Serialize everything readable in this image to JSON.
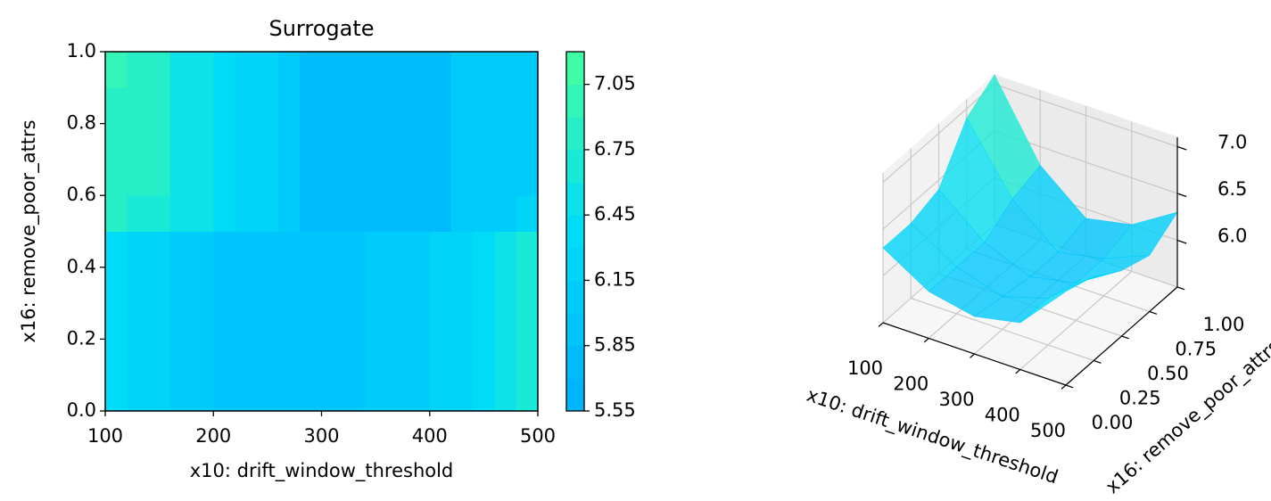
{
  "chart_data": [
    {
      "type": "contour",
      "title": "Surrogate",
      "xlabel": "x10: drift_window_threshold",
      "ylabel": "x16: remove_poor_attrs",
      "x": [
        110,
        130,
        150,
        170,
        190,
        210,
        230,
        250,
        270,
        290,
        310,
        330,
        350,
        370,
        390,
        410,
        430,
        450,
        470,
        490
      ],
      "y": [
        0.05,
        0.15,
        0.25,
        0.35,
        0.45,
        0.55,
        0.65,
        0.75,
        0.85,
        0.95
      ],
      "z": [
        [
          6.3,
          6.15,
          6.15,
          6.0,
          6.0,
          5.95,
          5.85,
          5.85,
          5.85,
          5.85,
          5.85,
          5.95,
          6.0,
          6.0,
          6.0,
          6.15,
          6.15,
          6.4,
          6.45,
          6.6
        ],
        [
          6.3,
          6.15,
          6.15,
          6.0,
          6.0,
          5.95,
          5.85,
          5.85,
          5.85,
          5.85,
          5.85,
          5.95,
          6.0,
          6.0,
          6.0,
          6.15,
          6.15,
          6.4,
          6.45,
          6.6
        ],
        [
          6.3,
          6.15,
          6.15,
          6.0,
          6.0,
          5.95,
          5.85,
          5.85,
          5.85,
          5.85,
          5.85,
          5.95,
          6.0,
          6.0,
          6.0,
          6.15,
          6.15,
          6.4,
          6.45,
          6.6
        ],
        [
          6.3,
          6.15,
          6.15,
          6.0,
          6.0,
          5.95,
          5.85,
          5.85,
          5.85,
          5.85,
          5.85,
          5.95,
          6.0,
          6.0,
          6.0,
          6.15,
          6.15,
          6.4,
          6.45,
          6.6
        ],
        [
          6.3,
          6.15,
          6.15,
          6.0,
          6.0,
          5.95,
          5.85,
          5.85,
          5.85,
          5.85,
          5.85,
          5.95,
          6.0,
          6.0,
          6.0,
          6.15,
          6.15,
          6.4,
          6.45,
          6.6
        ],
        [
          6.75,
          6.7,
          6.65,
          6.5,
          6.45,
          6.3,
          6.25,
          6.15,
          6.1,
          5.8,
          5.8,
          5.8,
          5.8,
          5.8,
          5.8,
          5.8,
          6.1,
          6.1,
          6.1,
          6.15
        ],
        [
          6.85,
          6.8,
          6.75,
          6.55,
          6.5,
          6.3,
          6.25,
          6.15,
          6.1,
          5.75,
          5.75,
          5.75,
          5.75,
          5.75,
          5.75,
          5.75,
          6.1,
          6.1,
          6.1,
          6.1
        ],
        [
          6.85,
          6.8,
          6.75,
          6.55,
          6.5,
          6.3,
          6.25,
          6.15,
          6.1,
          5.75,
          5.75,
          5.75,
          5.75,
          5.75,
          5.75,
          5.75,
          6.1,
          6.1,
          6.1,
          6.1
        ],
        [
          6.85,
          6.8,
          6.75,
          6.55,
          6.5,
          6.3,
          6.25,
          6.15,
          6.1,
          5.75,
          5.75,
          5.75,
          5.75,
          5.75,
          5.75,
          5.75,
          6.1,
          6.1,
          6.1,
          6.1
        ],
        [
          6.9,
          6.85,
          6.75,
          6.55,
          6.5,
          6.3,
          6.25,
          6.15,
          6.1,
          5.75,
          5.75,
          5.75,
          5.75,
          5.75,
          5.75,
          5.75,
          6.1,
          6.1,
          6.1,
          6.1
        ]
      ],
      "xlim": [
        100,
        500
      ],
      "ylim": [
        0,
        1
      ],
      "xticks": [
        100,
        200,
        300,
        400,
        500
      ],
      "yticks": [
        {
          "value": 0,
          "label": "0.0"
        },
        0.2,
        0.4,
        0.6,
        0.8,
        {
          "value": 1,
          "label": "1.0"
        }
      ],
      "levels": [
        5.55,
        5.7,
        5.85,
        6.0,
        6.15,
        6.3,
        6.45,
        6.6,
        6.75,
        6.9,
        7.05,
        7.2
      ],
      "cticks": [
        5.55,
        5.85,
        6.15,
        6.45,
        6.75,
        7.05
      ],
      "colormap": [
        "#00b0ff",
        "#00dcf8",
        "#45ff9e"
      ]
    },
    {
      "type": "surface3d",
      "xlabel": "x10: drift_window_threshold",
      "ylabel": "x16: remove_poor_attrs",
      "x": [
        100,
        200,
        300,
        400,
        500
      ],
      "y": [
        0,
        0.25,
        0.5,
        0.75,
        1
      ],
      "z": [
        [
          6.3,
          6.0,
          5.9,
          6.0,
          6.5
        ],
        [
          6.3,
          6.0,
          5.85,
          6.0,
          6.4
        ],
        [
          6.4,
          6.0,
          5.8,
          5.9,
          6.2
        ],
        [
          6.9,
          6.2,
          5.8,
          5.9,
          6.1
        ],
        [
          7.1,
          6.3,
          5.9,
          6.0,
          6.3
        ]
      ],
      "xlim": [
        100,
        500
      ],
      "ylim": [
        0,
        1
      ],
      "zlim": [
        5.5,
        7.1
      ],
      "xticks": [
        100,
        200,
        300,
        400,
        500
      ],
      "yticks": [
        {
          "value": 0,
          "label": "0.00"
        },
        0.25,
        {
          "value": 0.5,
          "label": "0.50"
        },
        0.75,
        {
          "value": 1,
          "label": "1.00"
        }
      ],
      "zticks": [
        {
          "value": 6,
          "label": "6.0"
        },
        6.5,
        {
          "value": 7,
          "label": "7.0"
        }
      ],
      "colormap": [
        "#00b0ff",
        "#00dcf8",
        "#45ff9e"
      ],
      "alpha": 0.8
    }
  ]
}
